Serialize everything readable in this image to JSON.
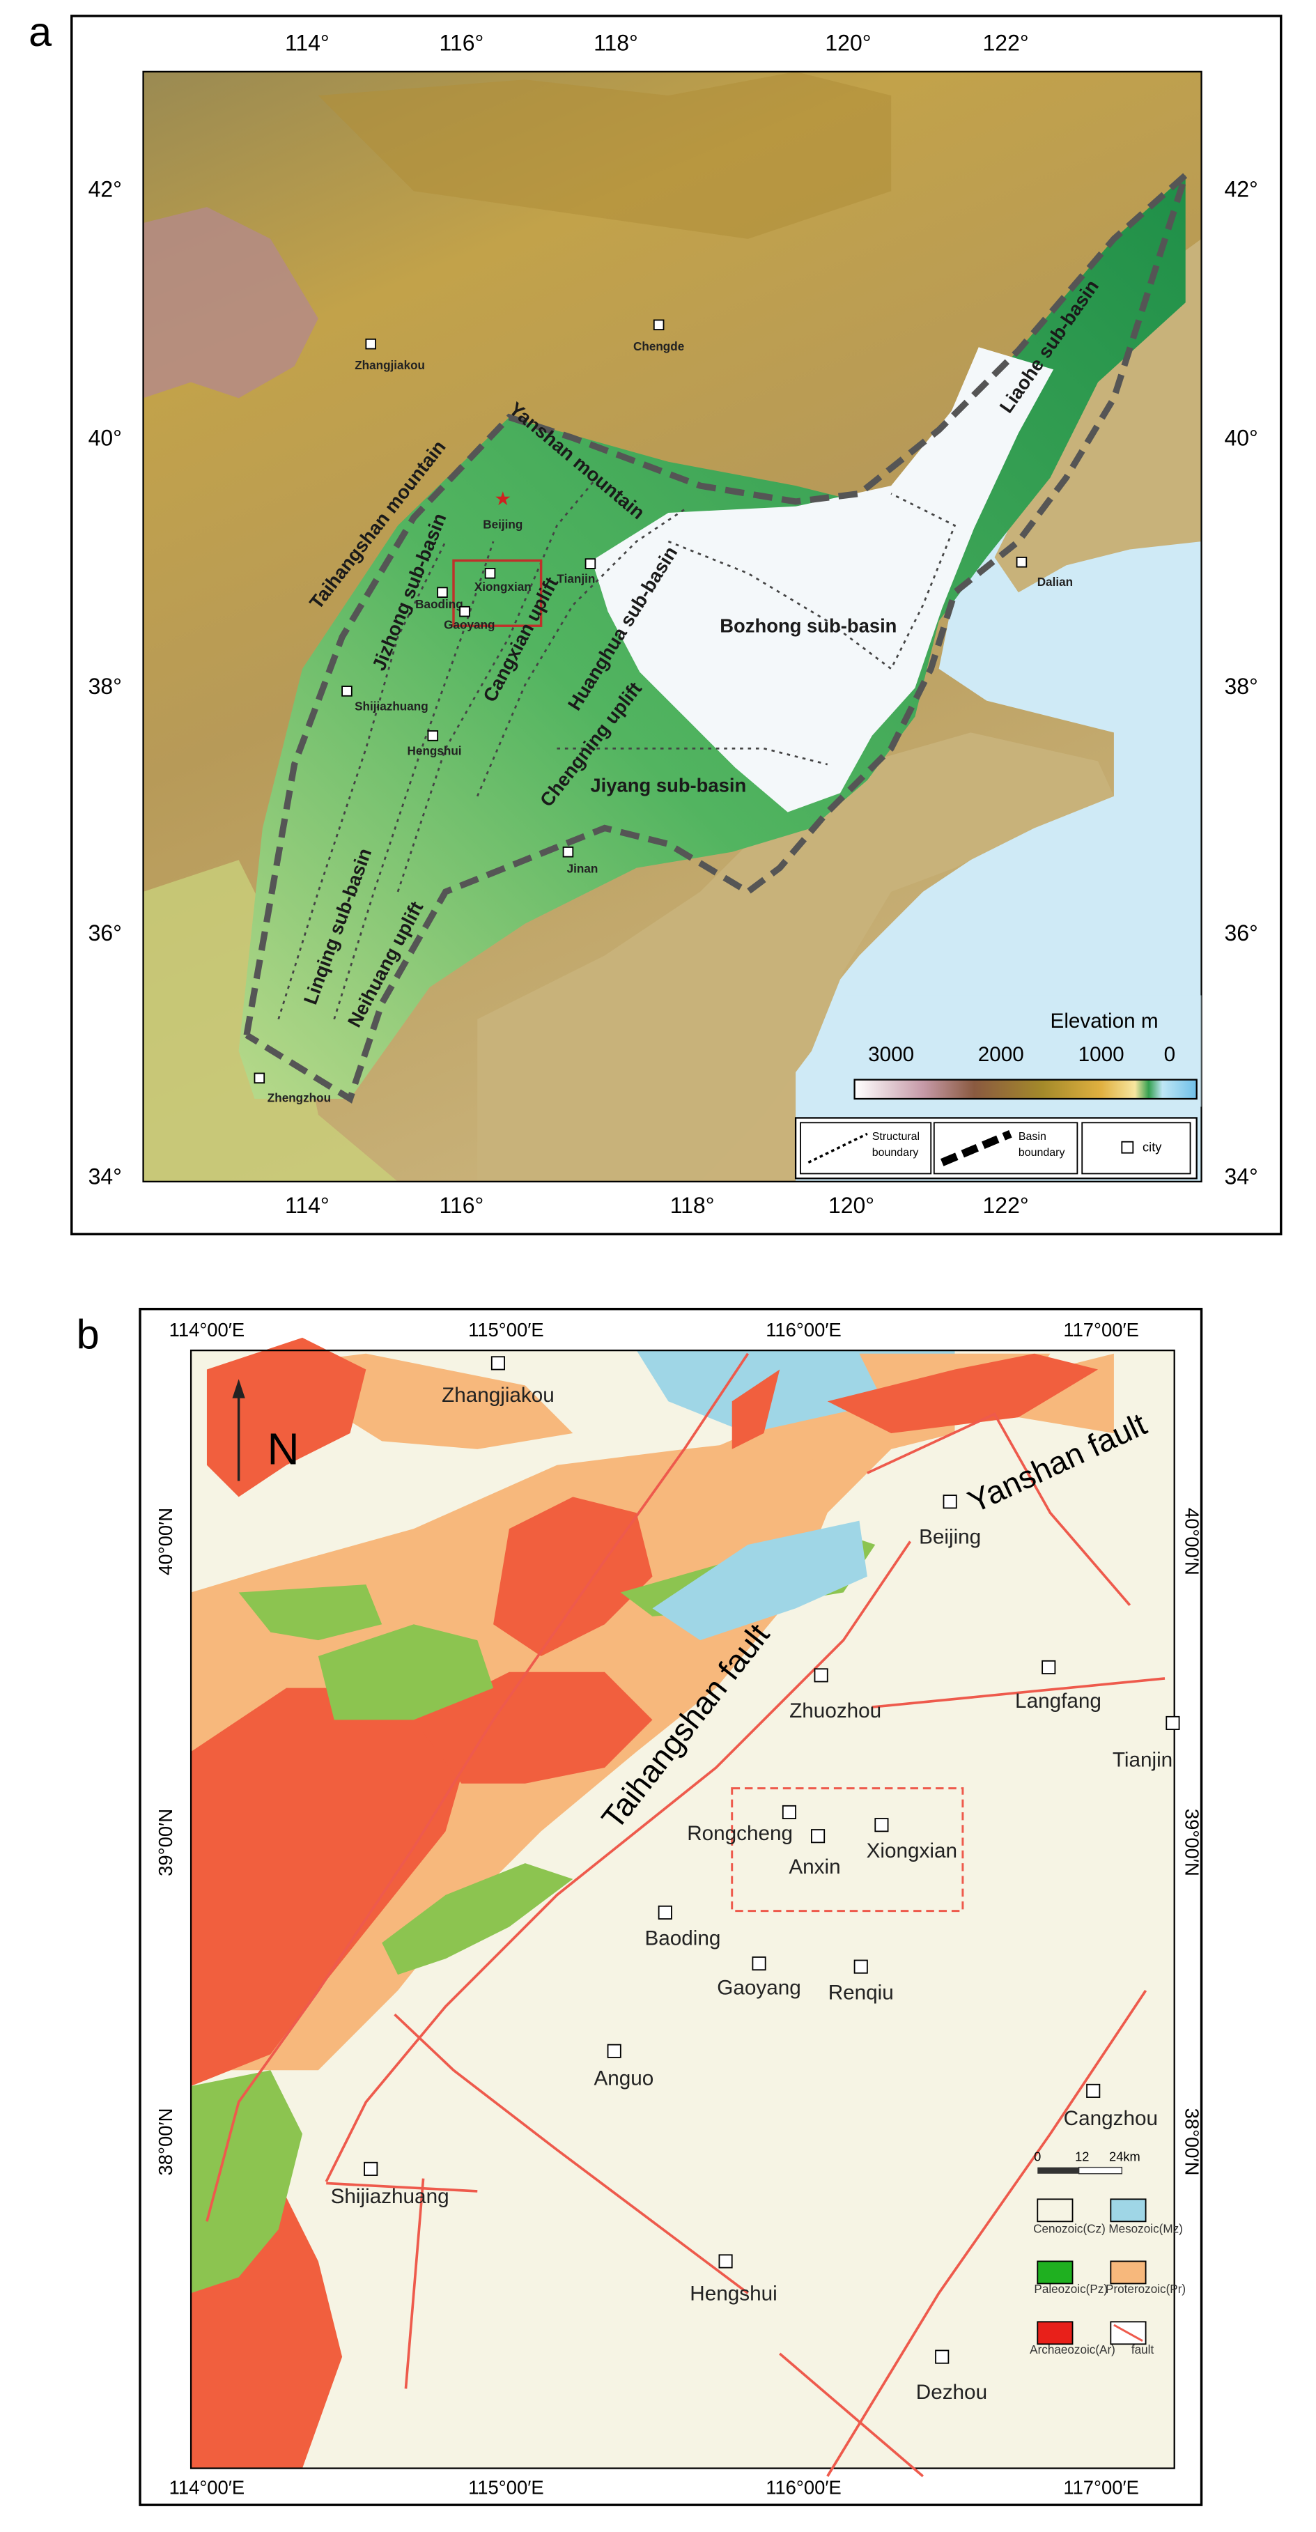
{
  "panel_a": {
    "label": "a",
    "lon_ticks": [
      "114°",
      "116°",
      "118°",
      "120°",
      "122°"
    ],
    "lat_ticks": [
      "42°",
      "40°",
      "38°",
      "36°",
      "34°"
    ],
    "cities": [
      "Zhangjiakou",
      "Chengde",
      "Beijing",
      "Tianjin",
      "Xiongxian",
      "Baoding",
      "Gaoyang",
      "Shijiazhuang",
      "Hengshui",
      "Jinan",
      "Zhengzhou",
      "Dalian"
    ],
    "regions": [
      "Yanshan mountain",
      "Taihangshan mountain",
      "Jizhong sub-basin",
      "Cangxian uplift",
      "Huanghua sub-basin",
      "Chengning uplift",
      "Bozhong sub-basin",
      "Jiyang sub-basin",
      "Liaohe sub-basin",
      "Linqing sub-basin",
      "Neihuang uplift"
    ],
    "legend": {
      "title": "Elevation m",
      "scale": [
        3000,
        2000,
        1000,
        0
      ],
      "structural": [
        "Structural",
        "boundary"
      ],
      "basin": [
        "Basin",
        "boundary"
      ],
      "city": "city"
    }
  },
  "panel_b": {
    "label": "b",
    "lon_ticks": [
      "114°00′E",
      "115°00′E",
      "116°00′E",
      "117°00′E"
    ],
    "lat_ticks": [
      "40°00′N",
      "39°00′N",
      "38°00′N"
    ],
    "north": "N",
    "faults": [
      "Yanshan fault",
      "Taihangshan fault"
    ],
    "cities": [
      "Zhangjiakou",
      "Beijing",
      "Zhuozhou",
      "Langfang",
      "Tianjin",
      "Rongcheng",
      "Anxin",
      "Xiongxian",
      "Baoding",
      "Gaoyang",
      "Renqiu",
      "Anguo",
      "Cangzhou",
      "Shijiazhuang",
      "Hengshui",
      "Dezhou"
    ],
    "scale_bar": [
      "0",
      "12",
      "24km"
    ],
    "legend": [
      "Cenozoic(Cz)",
      "Mesozoic(Mz)",
      "Paleozoic(Pz)",
      "Proterozoic(Pr)",
      "Archaeozoic(Ar)",
      "fault"
    ]
  }
}
